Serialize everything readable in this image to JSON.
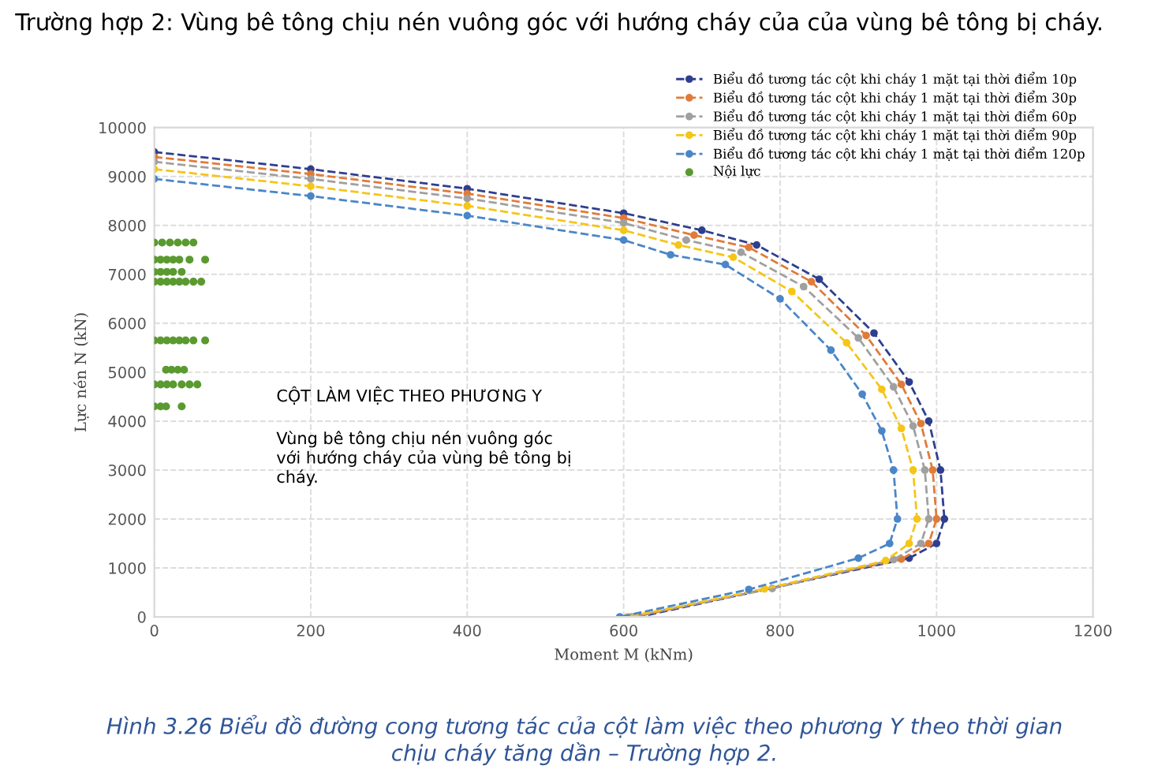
{
  "chart_data": {
    "type": "line",
    "title": "Trường hợp 2: Vùng bê tông chịu nén vuông góc với hướng cháy của của vùng bê tông bị cháy.",
    "xlabel": "Moment M (kNm)",
    "ylabel": "Lực nén N (kN)",
    "xlim": [
      0,
      1200
    ],
    "xticks": [
      0,
      200,
      400,
      600,
      800,
      1000,
      1200
    ],
    "ylim": [
      0,
      10000
    ],
    "yticks": [
      0,
      1000,
      2000,
      3000,
      4000,
      5000,
      6000,
      7000,
      8000,
      9000,
      10000
    ],
    "grid": true,
    "legend": "top right",
    "marker": "circle",
    "line_style": "dashed",
    "annotations": [
      "CỘT LÀM VIỆC THEO PHƯƠNG Y",
      "Vùng bê tông chịu nén vuông góc\nvới hướng cháy của vùng bê tông bị\ncháy.",
      "Hình 3.26 Biểu đồ đường cong tương tác của cột làm việc theo phương Y theo thời gian\nchịu cháy tăng dần – Trường hợp 2."
    ],
    "series": [
      {
        "name": "Biểu đồ tương tác cột khi cháy 1 mặt tại thời điểm 10p",
        "color": "#2f3f8f",
        "x": [
          0,
          200,
          400,
          600,
          700,
          770,
          850,
          920,
          965,
          990,
          1005,
          1010,
          1000,
          965,
          620
        ],
        "values": [
          9500,
          9150,
          8750,
          8250,
          7900,
          7600,
          6900,
          5800,
          4800,
          4000,
          3000,
          2000,
          1500,
          1200,
          0
        ]
      },
      {
        "name": "Biểu đồ tương tác cột khi cháy 1 mặt tại thời điểm 30p",
        "color": "#e07b39",
        "x": [
          0,
          200,
          400,
          600,
          690,
          760,
          840,
          910,
          955,
          980,
          995,
          1000,
          990,
          955,
          615
        ],
        "values": [
          9400,
          9050,
          8650,
          8150,
          7800,
          7550,
          6850,
          5750,
          4750,
          3950,
          3000,
          2000,
          1500,
          1180,
          0
        ]
      },
      {
        "name": "Biểu đồ tương tác cột khi cháy 1 mặt tại thời điểm 60p",
        "color": "#a0a0a0",
        "x": [
          0,
          200,
          400,
          600,
          680,
          750,
          830,
          900,
          945,
          970,
          985,
          990,
          980,
          945,
          790,
          610
        ],
        "values": [
          9300,
          8950,
          8550,
          8050,
          7700,
          7450,
          6750,
          5700,
          4700,
          3900,
          3000,
          2000,
          1500,
          1170,
          580,
          0
        ]
      },
      {
        "name": "Biểu đồ tương tác cột khi cháy 1 mặt tại thời điểm 90p",
        "color": "#f5c518",
        "x": [
          0,
          200,
          400,
          600,
          670,
          740,
          815,
          885,
          930,
          955,
          970,
          975,
          965,
          935,
          780,
          605
        ],
        "values": [
          9150,
          8800,
          8400,
          7900,
          7600,
          7350,
          6650,
          5600,
          4650,
          3850,
          3000,
          2000,
          1500,
          1150,
          570,
          0
        ]
      },
      {
        "name": "Biểu đồ tương tác cột khi cháy 1 mặt tại thời điểm 120p",
        "color": "#4a86c8",
        "x": [
          0,
          200,
          400,
          600,
          660,
          730,
          800,
          865,
          905,
          930,
          945,
          950,
          940,
          900,
          760,
          595
        ],
        "values": [
          8950,
          8600,
          8200,
          7700,
          7400,
          7200,
          6500,
          5450,
          4550,
          3800,
          3000,
          2000,
          1500,
          1200,
          560,
          0
        ]
      },
      {
        "name": "Nội lực",
        "type": "scatter",
        "color": "#5a9a30",
        "x": [
          0,
          10,
          20,
          30,
          40,
          50,
          0,
          8,
          16,
          24,
          32,
          45,
          65,
          0,
          8,
          16,
          24,
          35,
          0,
          8,
          16,
          24,
          32,
          40,
          50,
          60,
          0,
          8,
          16,
          24,
          32,
          40,
          50,
          65,
          15,
          22,
          30,
          38,
          0,
          8,
          16,
          24,
          35,
          45,
          55,
          0,
          8,
          15,
          35
        ],
        "values": [
          7650,
          7650,
          7650,
          7650,
          7650,
          7650,
          7300,
          7300,
          7300,
          7300,
          7300,
          7300,
          7300,
          7050,
          7050,
          7050,
          7050,
          7050,
          6850,
          6850,
          6850,
          6850,
          6850,
          6850,
          6850,
          6850,
          5650,
          5650,
          5650,
          5650,
          5650,
          5650,
          5650,
          5650,
          5050,
          5050,
          5050,
          5050,
          4750,
          4750,
          4750,
          4750,
          4750,
          4750,
          4750,
          4300,
          4300,
          4300,
          4300
        ]
      }
    ]
  }
}
